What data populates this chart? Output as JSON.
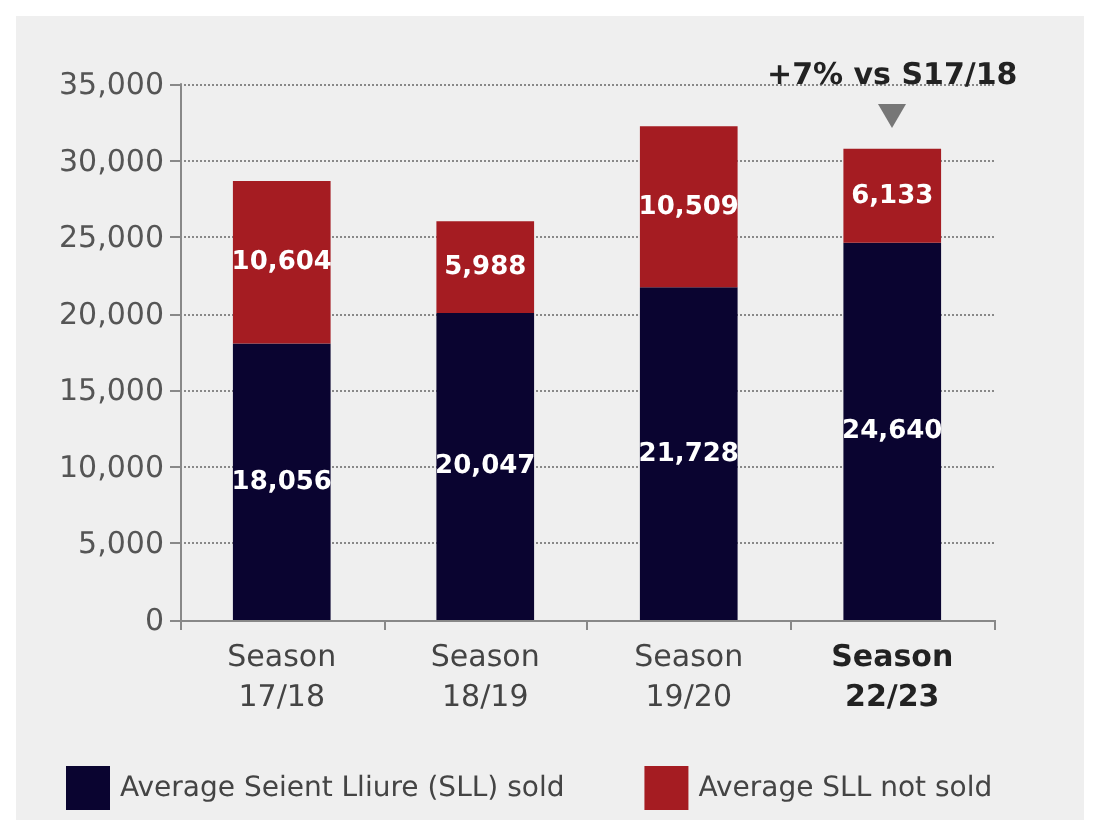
{
  "chart_data": {
    "type": "bar",
    "stacked": true,
    "categories": [
      "Season\n17/18",
      "Season\n18/19",
      "Season\n19/20",
      "Season\n22/23"
    ],
    "series": [
      {
        "name": "Average Seient Lliure (SLL) sold",
        "color": "#0a0430",
        "values": [
          18056,
          20047,
          21728,
          24640
        ],
        "value_labels": [
          "18,056",
          "20,047",
          "21,728",
          "24,640"
        ]
      },
      {
        "name": "Average SLL not sold",
        "color": "#a51c22",
        "values": [
          10604,
          5988,
          10509,
          6133
        ],
        "value_labels": [
          "10,604",
          "5,988",
          "10,509",
          "6,133"
        ]
      }
    ],
    "ylim": [
      0,
      35000
    ],
    "yticks": [
      0,
      {
        "value": 5000,
        "label": "5,000"
      },
      {
        "value": 10000,
        "label": "10,000"
      },
      {
        "value": 15000,
        "label": "15,000"
      },
      {
        "value": 20000,
        "label": "20,000"
      },
      {
        "value": 25000,
        "label": "25,000"
      },
      {
        "value": 30000,
        "label": "30,000"
      },
      {
        "value": 35000,
        "label": "35,000"
      }
    ],
    "grid": "y",
    "legend": "bottom",
    "annotations": [
      {
        "text": "+7% vs S17/18",
        "x": "Season\n22/23",
        "y": 30773
      }
    ]
  }
}
